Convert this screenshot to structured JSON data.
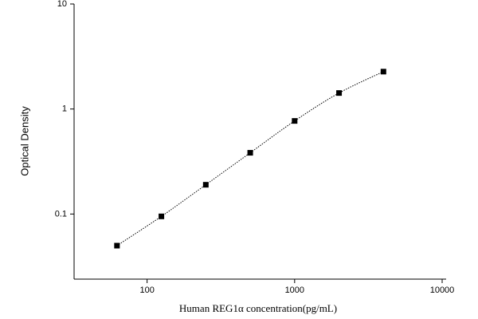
{
  "chart_data": {
    "type": "scatter",
    "x_label": "Human REG1α  concentration(pg/mL)",
    "y_label": "Optical Density",
    "x": [
      62.5,
      125,
      250,
      500,
      1000,
      2000,
      4000
    ],
    "series": [
      {
        "color": "#000000",
        "values": [
          0.05,
          0.095,
          0.19,
          0.383,
          0.77,
          1.42,
          2.27
        ]
      }
    ],
    "xlim": [
      32,
      10000
    ],
    "ylim": [
      0.024,
      10
    ],
    "xticks": [
      100,
      1000,
      10000
    ],
    "yticks": [
      0.1,
      1,
      10
    ],
    "xscale": "log",
    "yscale": "log",
    "fit_line": "dotted"
  }
}
